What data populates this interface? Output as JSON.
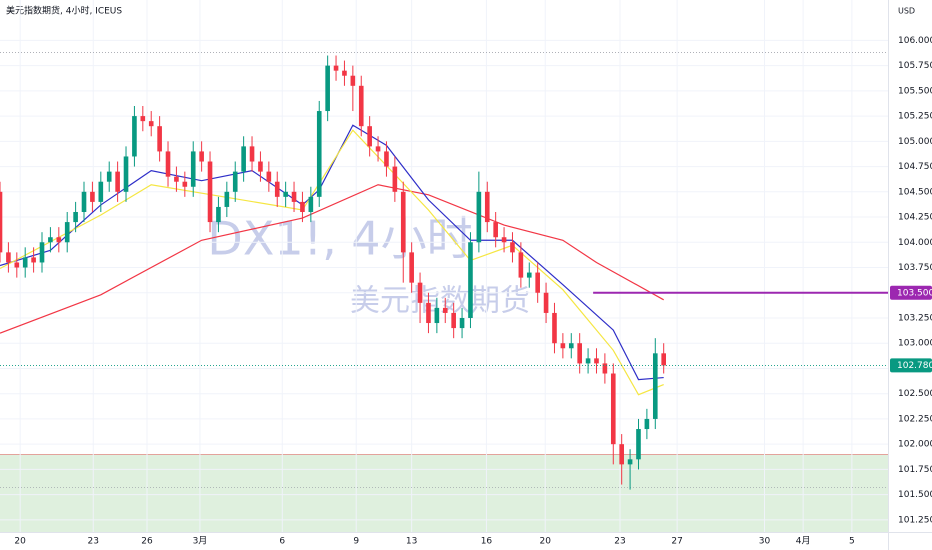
{
  "chart_data": {
    "type": "candlestick",
    "title": "美元指数期货, 4小时, ICEUS",
    "currency": "USD",
    "watermark": [
      "DX1!, 4小时",
      "美元指数期货"
    ],
    "up_color": "#089981",
    "down_color": "#f23645",
    "x": [
      0,
      1,
      2,
      3,
      4,
      5,
      6,
      7,
      8,
      9,
      10,
      11,
      12,
      13,
      14,
      15,
      16,
      17,
      18,
      19,
      20,
      21,
      22,
      23,
      24,
      25,
      26,
      27,
      28,
      29,
      30,
      31,
      32,
      33,
      34,
      35,
      36,
      37,
      38,
      39,
      40,
      41,
      42,
      43,
      44,
      45,
      46,
      47,
      48,
      49,
      50,
      51,
      52,
      53,
      54,
      55,
      56,
      57,
      58,
      59,
      60,
      61,
      62,
      63,
      64,
      65,
      66,
      67,
      68,
      69,
      70,
      71,
      72,
      73,
      74,
      75,
      76,
      77,
      78,
      79
    ],
    "open": [
      104.5,
      103.9,
      103.8,
      103.75,
      103.85,
      103.8,
      104.0,
      104.05,
      104.0,
      104.2,
      104.3,
      104.5,
      104.4,
      104.6,
      104.7,
      104.5,
      104.85,
      105.25,
      105.2,
      105.15,
      104.9,
      104.65,
      104.6,
      104.55,
      104.9,
      104.8,
      104.2,
      104.35,
      104.5,
      104.7,
      104.95,
      104.8,
      104.7,
      104.6,
      104.45,
      104.5,
      104.4,
      104.3,
      104.45,
      105.3,
      105.75,
      105.7,
      105.65,
      105.55,
      105.15,
      104.95,
      104.9,
      104.75,
      104.5,
      103.9,
      103.6,
      103.4,
      103.2,
      103.35,
      103.3,
      103.15,
      103.25,
      104.0,
      104.5,
      104.2,
      104.05,
      104.0,
      103.9,
      103.65,
      103.7,
      103.5,
      103.3,
      103.0,
      102.95,
      103.0,
      102.8,
      102.85,
      102.8,
      102.7,
      102.0,
      101.8,
      101.85,
      102.15,
      102.25,
      102.9
    ],
    "high": [
      104.6,
      104.0,
      103.9,
      103.95,
      103.95,
      104.1,
      104.15,
      104.15,
      104.3,
      104.4,
      104.6,
      104.6,
      104.7,
      104.8,
      104.8,
      104.95,
      105.35,
      105.35,
      105.3,
      105.25,
      105.0,
      104.75,
      104.7,
      105.0,
      105.0,
      104.9,
      104.45,
      104.6,
      104.8,
      105.05,
      105.05,
      104.9,
      104.8,
      104.7,
      104.6,
      104.6,
      104.5,
      104.55,
      105.4,
      105.85,
      105.85,
      105.8,
      105.75,
      105.65,
      105.25,
      105.05,
      105.0,
      104.85,
      104.6,
      104.0,
      103.7,
      103.5,
      103.45,
      103.45,
      103.4,
      103.35,
      104.1,
      104.7,
      104.6,
      104.3,
      104.15,
      104.1,
      104.0,
      103.8,
      103.8,
      103.6,
      103.4,
      103.1,
      103.1,
      103.1,
      102.95,
      102.95,
      102.9,
      102.8,
      102.1,
      101.95,
      102.25,
      102.35,
      103.05,
      103.0
    ],
    "low": [
      103.8,
      103.7,
      103.65,
      103.65,
      103.7,
      103.7,
      103.9,
      103.9,
      103.9,
      104.1,
      104.2,
      104.3,
      104.3,
      104.5,
      104.4,
      104.4,
      104.75,
      105.1,
      105.05,
      104.8,
      104.55,
      104.5,
      104.45,
      104.45,
      104.7,
      104.1,
      104.1,
      104.25,
      104.4,
      104.6,
      104.7,
      104.6,
      104.5,
      104.35,
      104.35,
      104.3,
      104.2,
      104.2,
      104.35,
      105.2,
      105.6,
      105.55,
      105.3,
      105.05,
      104.85,
      104.8,
      104.65,
      104.4,
      103.6,
      103.5,
      103.2,
      103.1,
      103.1,
      103.2,
      103.05,
      103.05,
      103.15,
      103.9,
      104.1,
      103.95,
      103.9,
      103.8,
      103.55,
      103.55,
      103.4,
      103.2,
      102.9,
      102.85,
      102.85,
      102.7,
      102.7,
      102.7,
      102.6,
      101.8,
      101.6,
      101.55,
      101.75,
      102.05,
      102.15,
      102.7
    ],
    "close": [
      103.9,
      103.8,
      103.75,
      103.85,
      103.8,
      104.0,
      104.05,
      104.0,
      104.2,
      104.3,
      104.5,
      104.4,
      104.6,
      104.7,
      104.5,
      104.85,
      105.25,
      105.2,
      105.15,
      104.9,
      104.65,
      104.6,
      104.55,
      104.9,
      104.8,
      104.2,
      104.35,
      104.5,
      104.7,
      104.95,
      104.8,
      104.7,
      104.6,
      104.45,
      104.5,
      104.4,
      104.3,
      104.45,
      105.3,
      105.75,
      105.7,
      105.65,
      105.55,
      105.15,
      104.95,
      104.9,
      104.75,
      104.5,
      103.9,
      103.6,
      103.4,
      103.2,
      103.35,
      103.3,
      103.15,
      103.25,
      104.0,
      104.5,
      104.2,
      104.05,
      104.0,
      103.9,
      103.65,
      103.7,
      103.5,
      103.3,
      103.0,
      102.95,
      103.0,
      102.8,
      102.85,
      102.8,
      102.7,
      102.0,
      101.8,
      101.85,
      102.15,
      102.25,
      102.9,
      102.78
    ],
    "lines": [
      {
        "color": "#f23645",
        "x": [
          0,
          12,
          24,
          36,
          45,
          51,
          60,
          67,
          71,
          79
        ],
        "values": [
          103.1,
          103.48,
          104.02,
          104.24,
          104.57,
          104.47,
          104.17,
          104.02,
          103.8,
          103.43
        ]
      },
      {
        "color": "#2e2ec8",
        "x": [
          0,
          6,
          12,
          18,
          24,
          30,
          36,
          38,
          42,
          46,
          51,
          56,
          61,
          67,
          73,
          76,
          79
        ],
        "values": [
          103.77,
          103.92,
          104.37,
          104.71,
          104.61,
          104.71,
          104.37,
          104.52,
          105.16,
          104.96,
          104.42,
          104.02,
          104.02,
          103.58,
          103.13,
          102.64,
          102.66
        ]
      },
      {
        "color": "#f5e642",
        "x": [
          0,
          12,
          18,
          36,
          42,
          51,
          56,
          61,
          67,
          73,
          76,
          79
        ],
        "values": [
          103.74,
          104.27,
          104.57,
          104.32,
          105.11,
          104.32,
          103.82,
          103.97,
          103.53,
          102.93,
          102.49,
          102.59
        ]
      }
    ],
    "levels": [
      {
        "value": 103.5,
        "label": "103.500",
        "color": "#9c27b0",
        "from": 70.6
      },
      {
        "value": 102.78,
        "label": "102.780",
        "color": "#089981",
        "from": 0
      }
    ],
    "dotted_levels": [
      105.88,
      101.57
    ],
    "zone": {
      "top": 101.9,
      "color": "#dff0de"
    },
    "xlim": [
      0,
      105.7
    ],
    "xticks": [
      {
        "value": 2.4,
        "label": "20"
      },
      {
        "value": 11.1,
        "label": "23"
      },
      {
        "value": 17.5,
        "label": "26"
      },
      {
        "value": 23.8,
        "label": "3月"
      },
      {
        "value": 33.6,
        "label": "6"
      },
      {
        "value": 42.4,
        "label": "9"
      },
      {
        "value": 49,
        "label": "13"
      },
      {
        "value": 57.9,
        "label": "16"
      },
      {
        "value": 64.9,
        "label": "20"
      },
      {
        "value": 73.8,
        "label": "23"
      },
      {
        "value": 80.6,
        "label": "27"
      },
      {
        "value": 91,
        "label": "30"
      },
      {
        "value": 95.6,
        "label": "4月"
      },
      {
        "value": 101.4,
        "label": "5"
      }
    ],
    "ylim": [
      101.13,
      106.4
    ],
    "yticks": [
      {
        "value": 101.25,
        "label": "101.250"
      },
      {
        "value": 101.5,
        "label": "101.500"
      },
      {
        "value": 101.75,
        "label": "101.750"
      },
      {
        "value": 102,
        "label": "102.000"
      },
      {
        "value": 102.25,
        "label": "102.250"
      },
      {
        "value": 102.5,
        "label": "102.500"
      },
      {
        "value": 102.75,
        "label": "102.750"
      },
      {
        "value": 103,
        "label": "103.000"
      },
      {
        "value": 103.25,
        "label": "103.250"
      },
      {
        "value": 103.5,
        "label": "103.500"
      },
      {
        "value": 103.75,
        "label": "103.750"
      },
      {
        "value": 104,
        "label": "104.000"
      },
      {
        "value": 104.25,
        "label": "104.250"
      },
      {
        "value": 104.5,
        "label": "104.500"
      },
      {
        "value": 104.75,
        "label": "104.750"
      },
      {
        "value": 105,
        "label": "105.000"
      },
      {
        "value": 105.25,
        "label": "105.250"
      },
      {
        "value": 105.5,
        "label": "105.500"
      },
      {
        "value": 105.75,
        "label": "105.750"
      },
      {
        "value": 106,
        "label": "106.000"
      }
    ]
  }
}
